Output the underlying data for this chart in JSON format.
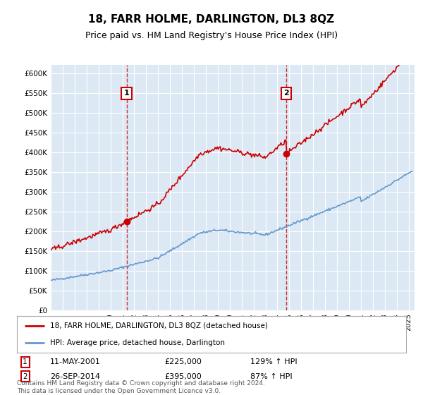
{
  "title": "18, FARR HOLME, DARLINGTON, DL3 8QZ",
  "subtitle": "Price paid vs. HM Land Registry's House Price Index (HPI)",
  "title_fontsize": 11,
  "subtitle_fontsize": 9,
  "plot_bg_color": "#dce9f5",
  "ylim": [
    0,
    620000
  ],
  "xlim_start": 1995.0,
  "xlim_end": 2025.5,
  "yticks": [
    0,
    50000,
    100000,
    150000,
    200000,
    250000,
    300000,
    350000,
    400000,
    450000,
    500000,
    550000,
    600000
  ],
  "ytick_labels": [
    "£0",
    "£50K",
    "£100K",
    "£150K",
    "£200K",
    "£250K",
    "£300K",
    "£350K",
    "£400K",
    "£450K",
    "£500K",
    "£550K",
    "£600K"
  ],
  "sale1_date": 2001.36,
  "sale1_price": 225000,
  "sale1_label": "1",
  "sale1_date_str": "11-MAY-2001",
  "sale1_price_str": "£225,000",
  "sale1_hpi": "129% ↑ HPI",
  "sale2_date": 2014.74,
  "sale2_price": 395000,
  "sale2_label": "2",
  "sale2_date_str": "26-SEP-2014",
  "sale2_price_str": "£395,000",
  "sale2_hpi": "87% ↑ HPI",
  "red_line_label": "18, FARR HOLME, DARLINGTON, DL3 8QZ (detached house)",
  "blue_line_label": "HPI: Average price, detached house, Darlington",
  "footer": "Contains HM Land Registry data © Crown copyright and database right 2024.\nThis data is licensed under the Open Government Licence v3.0.",
  "red_color": "#cc0000",
  "blue_color": "#6699cc",
  "marker_box_color": "#cc0000"
}
